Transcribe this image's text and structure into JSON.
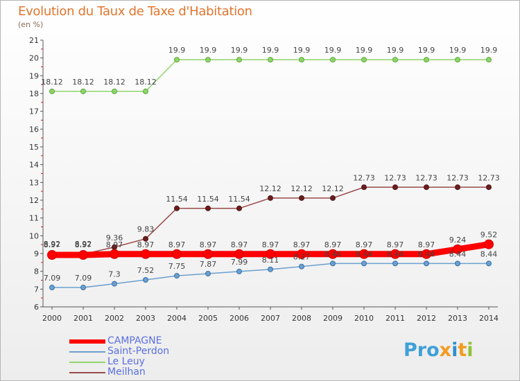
{
  "chart_data": {
    "type": "line",
    "title": "Evolution du Taux de Taxe d'Habitation",
    "unit_label": "(en %)",
    "x": [
      "2000",
      "2001",
      "2002",
      "2003",
      "2004",
      "2005",
      "2006",
      "2007",
      "2008",
      "2009",
      "2010",
      "2011",
      "2012",
      "2013",
      "2014"
    ],
    "ylim": [
      6,
      21
    ],
    "yticks": [
      6,
      7,
      8,
      9,
      10,
      11,
      12,
      13,
      14,
      15,
      16,
      17,
      18,
      19,
      20,
      21
    ],
    "grid": false,
    "legend_position": "bottom-left",
    "series": [
      {
        "name": "CAMPAGNE",
        "color": "#ff0000",
        "values": [
          8.92,
          8.92,
          8.97,
          8.97,
          8.97,
          8.97,
          8.97,
          8.97,
          8.97,
          8.97,
          8.97,
          8.97,
          8.97,
          9.24,
          9.52
        ],
        "labels": [
          "8.92",
          "8.92",
          "8.97",
          "8.97",
          "8.97",
          "8.97",
          "8.97",
          "8.97",
          "8.97",
          "8.97",
          "8.97",
          "8.97",
          "8.97",
          "9.24",
          "9.52"
        ]
      },
      {
        "name": "Saint-Perdon",
        "color": "#6b9fcf",
        "values": [
          7.09,
          7.09,
          7.3,
          7.52,
          7.75,
          7.87,
          7.99,
          8.11,
          8.27,
          8.44,
          8.44,
          8.44,
          8.44,
          8.44,
          8.44
        ],
        "labels": [
          "7.09",
          "7.09",
          "7.3",
          "7.52",
          "7.75",
          "7.87",
          "7.99",
          "8.11",
          "8.27",
          "8.44",
          "8.44",
          "8.44",
          "8.44",
          "8.44",
          "8.44"
        ]
      },
      {
        "name": "Le Leuy",
        "color": "#8fd46a",
        "values": [
          18.12,
          18.12,
          18.12,
          18.12,
          19.9,
          19.9,
          19.9,
          19.9,
          19.9,
          19.9,
          19.9,
          19.9,
          19.9,
          19.9,
          19.9
        ],
        "labels": [
          "18.12",
          "18.12",
          "18.12",
          "18.12",
          "19.9",
          "19.9",
          "19.9",
          "19.9",
          "19.9",
          "19.9",
          "19.9",
          "19.9",
          "19.9",
          "19.9",
          "19.9"
        ]
      },
      {
        "name": "Meilhan",
        "color": "#9b4a4a",
        "values": [
          8.97,
          8.97,
          9.36,
          9.83,
          11.54,
          11.54,
          11.54,
          12.12,
          12.12,
          12.12,
          12.73,
          12.73,
          12.73,
          12.73,
          12.73
        ],
        "labels": [
          "8.97",
          "8.97",
          "9.36",
          "9.83",
          "11.54",
          "11.54",
          "11.54",
          "12.12",
          "12.12",
          "12.12",
          "12.73",
          "12.73",
          "12.73",
          "12.73",
          "12.73"
        ]
      }
    ]
  },
  "logo": {
    "text": "Proxiti",
    "parts": [
      "Pro",
      "x",
      "i",
      "t",
      "i"
    ]
  }
}
